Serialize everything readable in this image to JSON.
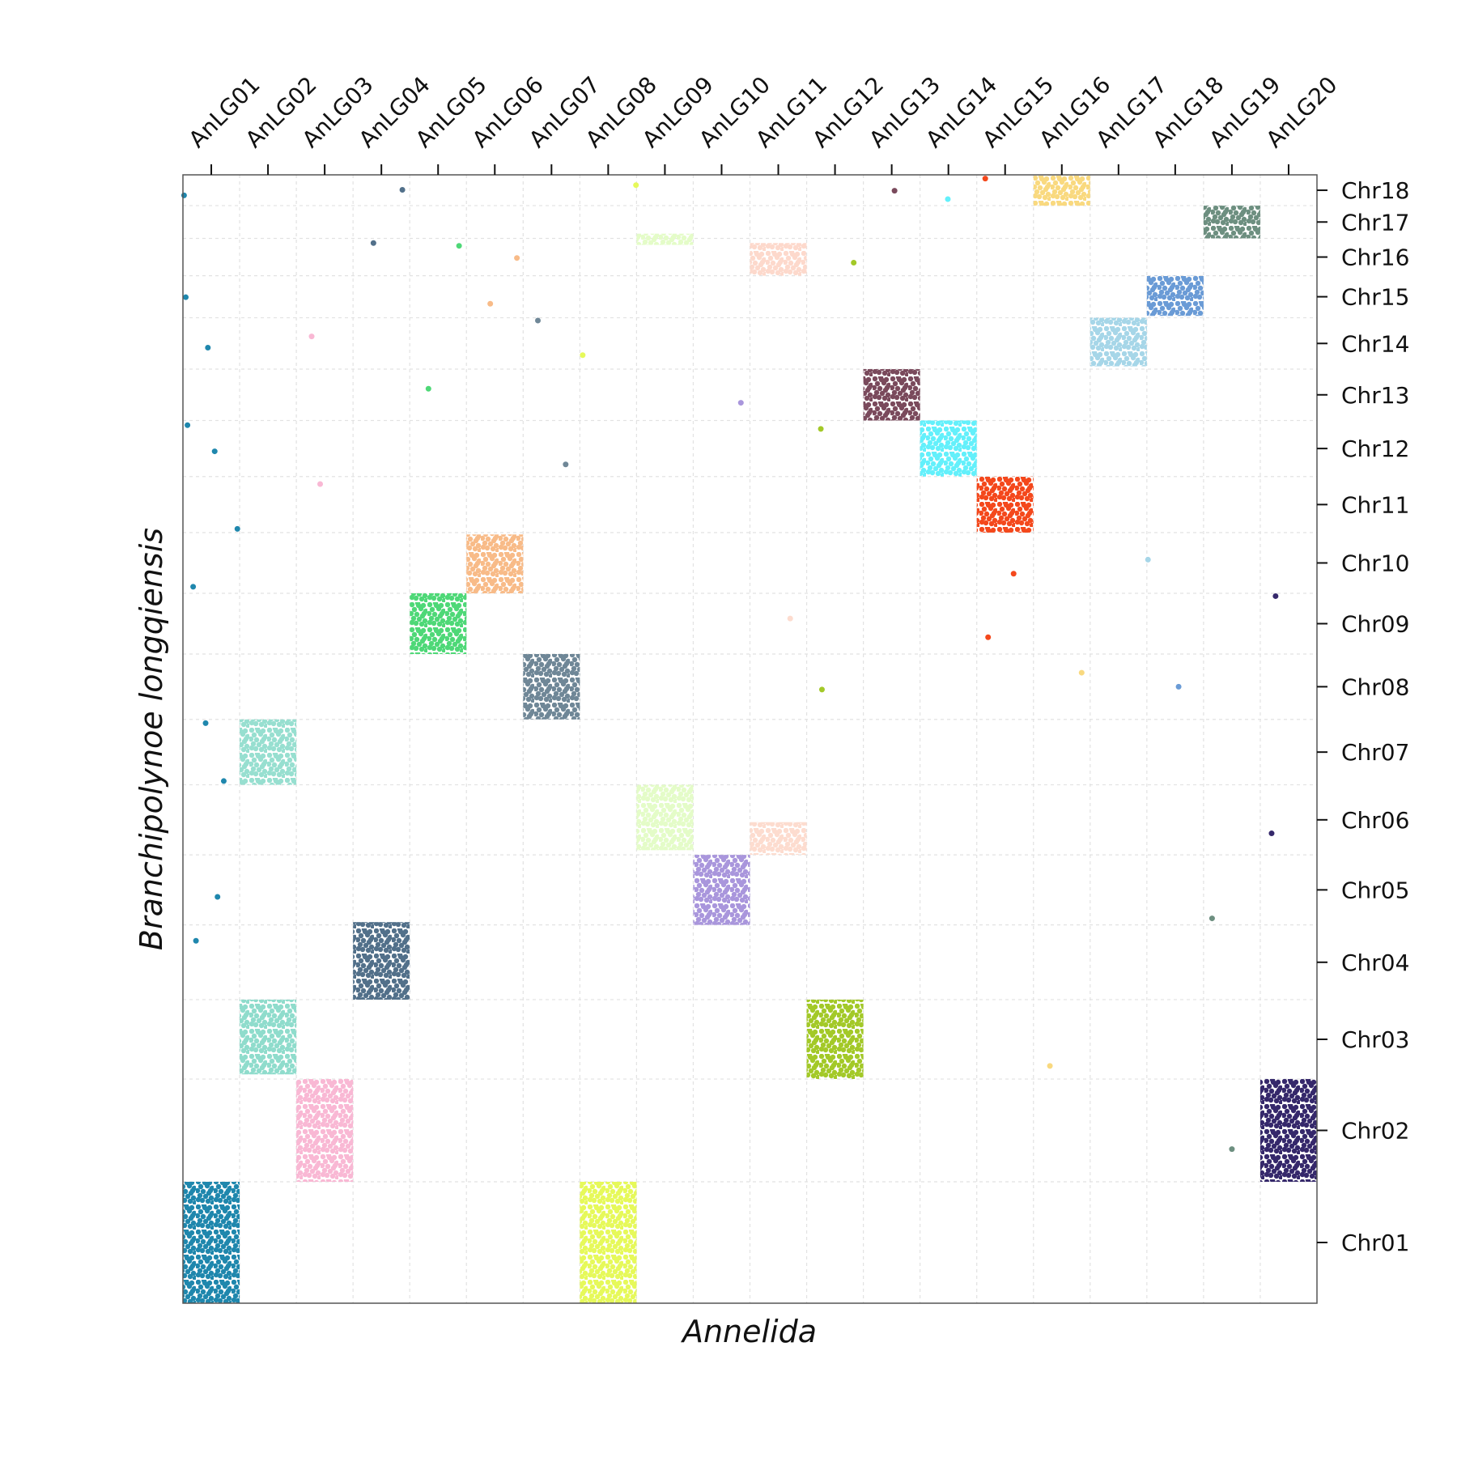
{
  "chart_data": {
    "type": "scatter",
    "x_label": "Annelida",
    "y_label": "Branchipolynoe longqiensis",
    "xlim": [
      0,
      20
    ],
    "ylim": [
      0,
      1208
    ],
    "xticks": [
      {
        "value": 0.5,
        "label": "AnLG01"
      },
      {
        "value": 1.5,
        "label": "AnLG02"
      },
      {
        "value": 2.5,
        "label": "AnLG03"
      },
      {
        "value": 3.5,
        "label": "AnLG04"
      },
      {
        "value": 4.5,
        "label": "AnLG05"
      },
      {
        "value": 5.5,
        "label": "AnLG06"
      },
      {
        "value": 6.5,
        "label": "AnLG07"
      },
      {
        "value": 7.5,
        "label": "AnLG08"
      },
      {
        "value": 8.5,
        "label": "AnLG09"
      },
      {
        "value": 9.5,
        "label": "AnLG10"
      },
      {
        "value": 10.5,
        "label": "AnLG11"
      },
      {
        "value": 11.5,
        "label": "AnLG12"
      },
      {
        "value": 12.5,
        "label": "AnLG13"
      },
      {
        "value": 13.5,
        "label": "AnLG14"
      },
      {
        "value": 14.5,
        "label": "AnLG15"
      },
      {
        "value": 15.5,
        "label": "AnLG16"
      },
      {
        "value": 16.5,
        "label": "AnLG17"
      },
      {
        "value": 17.5,
        "label": "AnLG18"
      },
      {
        "value": 18.5,
        "label": "AnLG19"
      },
      {
        "value": 19.5,
        "label": "AnLG20"
      }
    ],
    "yticks": [
      {
        "value": 65,
        "label": "Chr01"
      },
      {
        "value": 185,
        "label": "Chr02"
      },
      {
        "value": 282.5,
        "label": "Chr03"
      },
      {
        "value": 365,
        "label": "Chr04"
      },
      {
        "value": 442.5,
        "label": "Chr05"
      },
      {
        "value": 517.5,
        "label": "Chr06"
      },
      {
        "value": 590,
        "label": "Chr07"
      },
      {
        "value": 660,
        "label": "Chr08"
      },
      {
        "value": 727.5,
        "label": "Chr09"
      },
      {
        "value": 792.5,
        "label": "Chr10"
      },
      {
        "value": 855,
        "label": "Chr11"
      },
      {
        "value": 915,
        "label": "Chr12"
      },
      {
        "value": 972.5,
        "label": "Chr13"
      },
      {
        "value": 1027.5,
        "label": "Chr14"
      },
      {
        "value": 1077.5,
        "label": "Chr15"
      },
      {
        "value": 1120,
        "label": "Chr16"
      },
      {
        "value": 1157.5,
        "label": "Chr17"
      },
      {
        "value": 1191.5,
        "label": "Chr18"
      }
    ],
    "xgrid": [
      1,
      2,
      3,
      4,
      5,
      6,
      7,
      8,
      9,
      10,
      11,
      12,
      13,
      14,
      15,
      16,
      17,
      18,
      19
    ],
    "ygrid": [
      130,
      240,
      325,
      405,
      480,
      555,
      625,
      695,
      760,
      825,
      885,
      945,
      1000,
      1055,
      1100,
      1140,
      1175
    ],
    "clusters": [
      {
        "x": [
          0,
          1
        ],
        "y": [
          0,
          130
        ],
        "color": "#1f87ad"
      },
      {
        "x": [
          7,
          8
        ],
        "y": [
          0,
          130
        ],
        "color": "#e6f95a"
      },
      {
        "x": [
          2,
          3
        ],
        "y": [
          130,
          240
        ],
        "color": "#f9b8d4"
      },
      {
        "x": [
          19,
          20
        ],
        "y": [
          130,
          240
        ],
        "color": "#35286b"
      },
      {
        "x": [
          1,
          2
        ],
        "y": [
          245,
          325
        ],
        "color": "#8fdccc"
      },
      {
        "x": [
          11,
          12
        ],
        "y": [
          240,
          325
        ],
        "color": "#a3c928"
      },
      {
        "x": [
          3,
          4
        ],
        "y": [
          325,
          408
        ],
        "color": "#52708a"
      },
      {
        "x": [
          9,
          10
        ],
        "y": [
          405,
          480
        ],
        "color": "#a996dc"
      },
      {
        "x": [
          8,
          9
        ],
        "y": [
          485,
          555
        ],
        "color": "#e4fcc8"
      },
      {
        "x": [
          10,
          11
        ],
        "y": [
          480,
          515
        ],
        "color": "#fddccf"
      },
      {
        "x": [
          1,
          2
        ],
        "y": [
          555,
          625
        ],
        "color": "#97dfd0"
      },
      {
        "x": [
          6,
          7
        ],
        "y": [
          625,
          695
        ],
        "color": "#6f8797"
      },
      {
        "x": [
          4,
          5
        ],
        "y": [
          695,
          760
        ],
        "color": "#4ed877"
      },
      {
        "x": [
          5,
          6
        ],
        "y": [
          760,
          823
        ],
        "color": "#f8bb88"
      },
      {
        "x": [
          14,
          15
        ],
        "y": [
          825,
          885
        ],
        "color": "#f4481c"
      },
      {
        "x": [
          13,
          14
        ],
        "y": [
          885,
          945
        ],
        "color": "#63f0fb"
      },
      {
        "x": [
          12,
          13
        ],
        "y": [
          945,
          1000
        ],
        "color": "#7a4a5c"
      },
      {
        "x": [
          16,
          17
        ],
        "y": [
          1003,
          1055
        ],
        "color": "#a6d6e8"
      },
      {
        "x": [
          17,
          18
        ],
        "y": [
          1057,
          1100
        ],
        "color": "#6a9bd6"
      },
      {
        "x": [
          10,
          11
        ],
        "y": [
          1100,
          1135
        ],
        "color": "#fdd9cc"
      },
      {
        "x": [
          8,
          9
        ],
        "y": [
          1133,
          1145
        ],
        "color": "#e4fcc8"
      },
      {
        "x": [
          18,
          19
        ],
        "y": [
          1140,
          1175
        ],
        "color": "#6d8f80"
      },
      {
        "x": [
          15,
          16
        ],
        "y": [
          1175,
          1208
        ],
        "color": "#f9d97f"
      }
    ],
    "outliers": {
      "x": [
        0.02,
        0.05,
        0.44,
        0.08,
        0.56,
        0.96,
        0.18,
        0.4,
        0.72,
        0.61,
        0.23,
        3.87,
        3.36,
        6.75,
        6.26,
        2.27,
        2.42,
        5.42,
        5.89,
        4.33,
        4.87,
        7.05,
        7.99,
        11.83,
        11.25,
        11.27,
        14.15,
        14.65,
        14.2,
        13.49,
        12.55,
        19.27,
        19.2,
        18.15,
        18.5,
        9.84,
        17.56,
        17.02,
        15.85,
        15.29,
        10.71
      ],
      "y": [
        1186,
        1077,
        1023,
        940,
        912,
        829,
        767,
        621,
        559,
        435,
        388,
        1192,
        1135,
        898,
        1052,
        1035,
        877,
        1070,
        1119,
        979,
        1132,
        1015,
        1197,
        1114,
        936,
        657,
        1204,
        781,
        713,
        1182,
        1191,
        757,
        503,
        412,
        165,
        964,
        660,
        796,
        675,
        254,
        733
      ],
      "color": [
        "#1f87ad",
        "#1f87ad",
        "#1f87ad",
        "#1f87ad",
        "#1f87ad",
        "#1f87ad",
        "#1f87ad",
        "#1f87ad",
        "#1f87ad",
        "#1f87ad",
        "#1f87ad",
        "#52708a",
        "#52708a",
        "#6f8797",
        "#6f8797",
        "#f9b8d4",
        "#f9b8d4",
        "#f8bb88",
        "#f8bb88",
        "#4ed877",
        "#4ed877",
        "#e6f95a",
        "#e6f95a",
        "#a3c928",
        "#a3c928",
        "#a3c928",
        "#f4481c",
        "#f4481c",
        "#f4481c",
        "#63f0fb",
        "#7a4a5c",
        "#35286b",
        "#35286b",
        "#6d8f80",
        "#6d8f80",
        "#a996dc",
        "#6a9bd6",
        "#a6d6e8",
        "#f9d97f",
        "#f9d97f",
        "#fddccf"
      ]
    }
  }
}
